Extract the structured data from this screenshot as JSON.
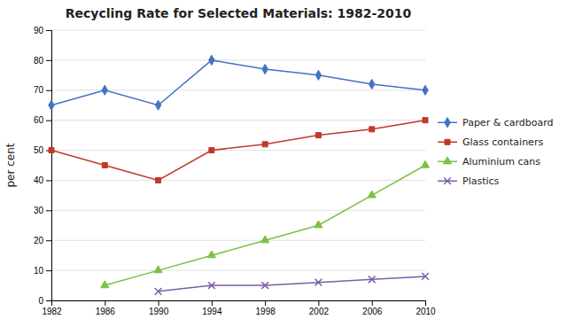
{
  "chart_data": {
    "type": "line",
    "title": "Recycling Rate for Selected Materials: 1982-2010",
    "ylabel": "per cent",
    "x": [
      1982,
      1986,
      1990,
      1994,
      1998,
      2002,
      2006,
      2010
    ],
    "series": [
      {
        "name": "Paper & cardboard",
        "color": "#4472C4",
        "marker": "diamond",
        "values": [
          65,
          70,
          65,
          80,
          77,
          75,
          72,
          70
        ]
      },
      {
        "name": "Glass containers",
        "color": "#C0392B",
        "marker": "square",
        "values": [
          50,
          45,
          40,
          50,
          52,
          55,
          57,
          60
        ]
      },
      {
        "name": "Aluminium cans",
        "color": "#7DC043",
        "marker": "triangle",
        "values": [
          null,
          5,
          10,
          15,
          20,
          25,
          35,
          45
        ]
      },
      {
        "name": "Plastics",
        "color": "#7B5EA7",
        "marker": "x",
        "values": [
          null,
          null,
          3,
          5,
          5,
          6,
          7,
          8
        ]
      }
    ],
    "xlim": [
      1982,
      2010
    ],
    "xticks": [
      1982,
      1986,
      1990,
      1994,
      1998,
      2002,
      2006,
      2010
    ],
    "ylim": [
      0,
      90
    ],
    "yticks": [
      0,
      10,
      20,
      30,
      40,
      50,
      60,
      70,
      80,
      90
    ],
    "grid": true,
    "legend": "right"
  }
}
